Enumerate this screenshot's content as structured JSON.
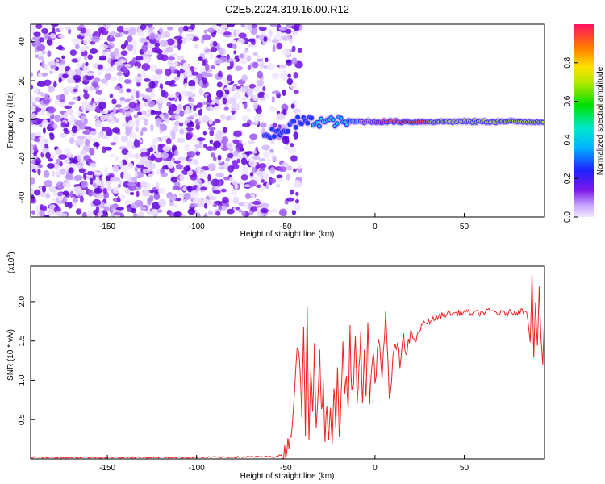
{
  "title": "C2E5.2024.319.16.00.R12",
  "colors": {
    "signal": "#ee2222",
    "noise": "#7a18e8",
    "frame": "#000000"
  },
  "chart_data": [
    {
      "type": "heatmap",
      "xlabel": "Height of straight line (km)",
      "ylabel": "Frequency (Hz)",
      "xlim": [
        -193,
        95
      ],
      "ylim": [
        -50,
        49
      ],
      "xticks": [
        -150,
        -100,
        -50,
        0,
        50
      ],
      "yticks": [
        -40,
        -20,
        0,
        20,
        40
      ],
      "colorbar": {
        "label": "Normalized spectral amplitude",
        "range": [
          0,
          1
        ],
        "ticks": [
          "0.0",
          "0.2",
          "0.4",
          "0.6",
          "0.8"
        ],
        "tick_values": [
          0.0,
          0.2,
          0.4,
          0.6,
          0.8
        ],
        "colormap": "purple-blue-cyan-green-yellow-red"
      },
      "features": {
        "noise_region_x": [
          -193,
          -50
        ],
        "signal_ridge_x": [
          -68,
          95
        ],
        "signal_frequency_hz": -1,
        "peak_amplitude_x": [
          0,
          30
        ]
      }
    },
    {
      "type": "line",
      "xlabel": "Height of straight line (km)",
      "ylabel": "SNR (10 * v/v)",
      "multiplier": "(x10",
      "multiplier_exp": "4",
      "multiplier_close": ")",
      "xlim": [
        -193,
        95
      ],
      "ylim": [
        0,
        2.45
      ],
      "xticks": [
        -150,
        -100,
        -50,
        0,
        50
      ],
      "yticks": [
        0.5,
        1.0,
        1.5,
        2.0
      ],
      "ytick_labels": [
        "0.5",
        "1.0",
        "1.5",
        "2.0"
      ],
      "series": [
        {
          "x": [
            -193,
            -150,
            -100,
            -55,
            -50,
            -47,
            -45,
            -43,
            -41,
            -40,
            -39,
            -38,
            -37,
            -36,
            -35,
            -34,
            -33,
            -32,
            -31,
            -30,
            -29,
            -28,
            -27,
            -26,
            -25,
            -24,
            -23,
            -22,
            -21,
            -20,
            -19,
            -18,
            -17,
            -16,
            -15,
            -14,
            -13,
            -12,
            -11,
            -10,
            -9,
            -8,
            -7,
            -6,
            -5,
            -4,
            -3,
            -2,
            -1,
            0,
            2,
            4,
            6,
            8,
            10,
            12,
            14,
            16,
            18,
            20,
            23,
            26,
            30,
            35,
            40,
            45,
            50,
            55,
            60,
            65,
            70,
            75,
            80,
            85,
            87,
            88,
            89,
            90,
            91,
            92,
            93,
            94,
            95
          ],
          "values": [
            0.02,
            0.02,
            0.02,
            0.03,
            0.08,
            0.35,
            0.9,
            1.5,
            0.6,
            1.8,
            0.4,
            1.95,
            0.25,
            1.2,
            0.5,
            1.4,
            0.3,
            0.75,
            1.35,
            0.6,
            0.9,
            0.2,
            0.7,
            0.35,
            0.6,
            0.2,
            1.0,
            0.45,
            1.25,
            0.3,
            0.75,
            1.4,
            0.8,
            1.1,
            0.55,
            1.6,
            0.8,
            0.95,
            1.5,
            0.7,
            1.2,
            1.65,
            0.65,
            1.3,
            0.8,
            1.75,
            0.75,
            1.1,
            1.4,
            1.0,
            1.55,
            0.95,
            1.9,
            0.7,
            1.25,
            1.45,
            1.2,
            1.6,
            1.35,
            1.6,
            1.5,
            1.7,
            1.75,
            1.8,
            1.85,
            1.85,
            1.87,
            1.85,
            1.86,
            1.88,
            1.85,
            1.86,
            1.87,
            1.9,
            1.5,
            2.35,
            1.3,
            2.0,
            1.4,
            2.15,
            1.55,
            1.2,
            1.85
          ]
        }
      ]
    }
  ]
}
